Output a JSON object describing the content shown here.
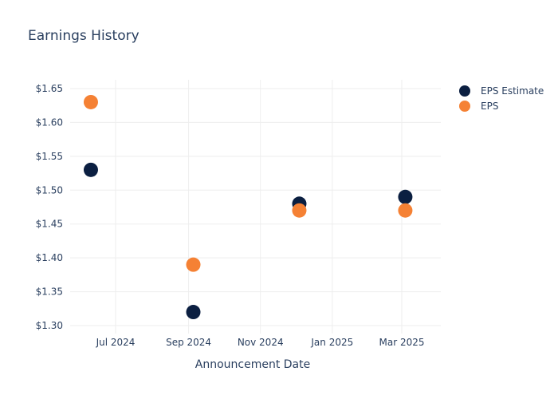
{
  "chart_data": {
    "type": "scatter",
    "title": "Earnings History",
    "xlabel": "Announcement Date",
    "ylabel": "",
    "x_type": "date",
    "xlim": [
      "2024-05-20",
      "2025-04-20"
    ],
    "ylim": [
      1.29,
      1.66
    ],
    "x_ticks": [
      {
        "date": "2024-07-01",
        "label": "Jul 2024"
      },
      {
        "date": "2024-09-01",
        "label": "Sep 2024"
      },
      {
        "date": "2024-11-01",
        "label": "Nov 2024"
      },
      {
        "date": "2025-01-01",
        "label": "Jan 2025"
      },
      {
        "date": "2025-03-01",
        "label": "Mar 2025"
      }
    ],
    "y_ticks": [
      {
        "value": 1.3,
        "label": "$1.30"
      },
      {
        "value": 1.35,
        "label": "$1.35"
      },
      {
        "value": 1.4,
        "label": "$1.40"
      },
      {
        "value": 1.45,
        "label": "$1.45"
      },
      {
        "value": 1.5,
        "label": "$1.50"
      },
      {
        "value": 1.55,
        "label": "$1.55"
      },
      {
        "value": 1.6,
        "label": "$1.60"
      },
      {
        "value": 1.65,
        "label": "$1.65"
      }
    ],
    "grid": true,
    "legend_position": "top-right",
    "series": [
      {
        "name": "EPS Estimate",
        "color": "#0b1f41",
        "points": [
          {
            "x": "2024-06-10",
            "y": 1.53
          },
          {
            "x": "2024-09-05",
            "y": 1.32
          },
          {
            "x": "2024-12-04",
            "y": 1.48
          },
          {
            "x": "2025-03-04",
            "y": 1.49
          }
        ]
      },
      {
        "name": "EPS",
        "color": "#f58134",
        "points": [
          {
            "x": "2024-06-10",
            "y": 1.63
          },
          {
            "x": "2024-09-05",
            "y": 1.39
          },
          {
            "x": "2024-12-04",
            "y": 1.47
          },
          {
            "x": "2025-03-04",
            "y": 1.47
          }
        ]
      }
    ]
  }
}
